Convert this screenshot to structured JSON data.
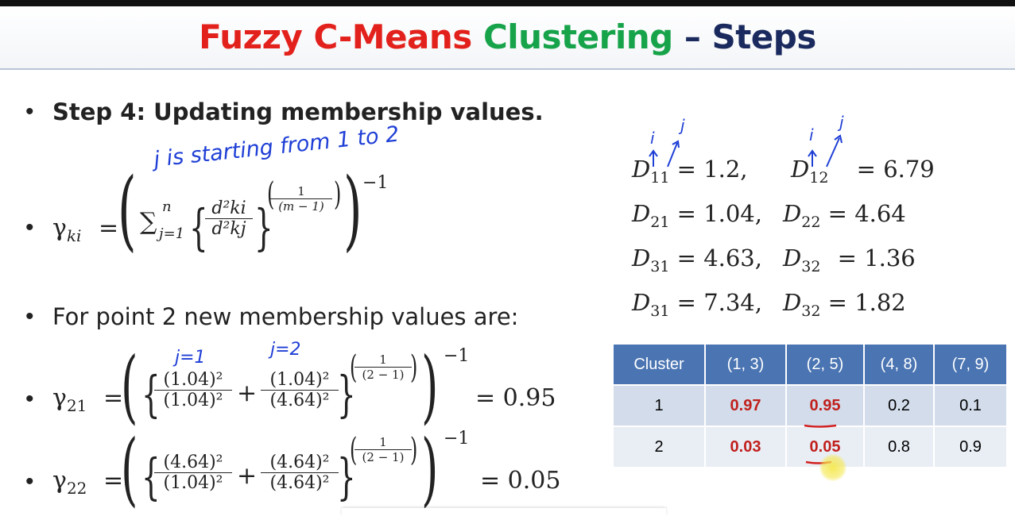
{
  "title": {
    "part1": "Fuzzy C-Means",
    "part2": "Clustering",
    "dash": "–",
    "part3": "Steps"
  },
  "bullets": {
    "step4": "Step 4: Updating membership values.",
    "point2": "For point 2 new membership values are:"
  },
  "formula": {
    "gamma": "γ",
    "ki": "ki",
    "eq": "=",
    "sum": "∑",
    "sum_sup": "n",
    "sum_sub": "j=1",
    "num": "d²ki",
    "den": "d²kj",
    "exp_num": "1",
    "exp_den": "(m − 1)",
    "outer_exp": "−1"
  },
  "g21": {
    "label": "γ",
    "sub": "21",
    "f1_num": "(1.04)²",
    "f1_den": "(1.04)²",
    "plus": "+",
    "f2_num": "(1.04)²",
    "f2_den": "(4.64)²",
    "exp_num": "1",
    "exp_den": "(2 − 1)",
    "outer_exp": "−1",
    "result": "= 0.95"
  },
  "g22": {
    "label": "γ",
    "sub": "22",
    "f1_num": "(4.64)²",
    "f1_den": "(1.04)²",
    "plus": "+",
    "f2_num": "(4.64)²",
    "f2_den": "(4.64)²",
    "exp_num": "1",
    "exp_den": "(2 − 1)",
    "outer_exp": "−1",
    "result": "= 0.05"
  },
  "handwriting": {
    "j_starting": "j is starting from 1 to 2",
    "j1": "j=1",
    "j2": "j=2",
    "i": "i",
    "j": "j"
  },
  "distances": [
    {
      "a": "D",
      "a_sub": "11",
      "a_val": "= 1.2,",
      "b": "D",
      "b_sub": "12",
      "b_val": "= 6.79"
    },
    {
      "a": "D",
      "a_sub": "21",
      "a_val": "= 1.04,",
      "b": "D",
      "b_sub": "22",
      "b_val": "= 4.64"
    },
    {
      "a": "D",
      "a_sub": "31",
      "a_val": "= 4.63,",
      "b": "D",
      "b_sub": "32",
      "b_val": "= 1.36"
    },
    {
      "a": "D",
      "a_sub": "31",
      "a_val": "= 7.34,",
      "b": "D",
      "b_sub": "32",
      "b_val": "= 1.82"
    }
  ],
  "table": {
    "headers": [
      "Cluster",
      "(1, 3)",
      "(2, 5)",
      "(4, 8)",
      "(7, 9)"
    ],
    "rows": [
      [
        "1",
        "0.97",
        "0.95",
        "0.2",
        "0.1"
      ],
      [
        "2",
        "0.03",
        "0.05",
        "0.8",
        "0.9"
      ]
    ],
    "highlight_color": "#c0201c",
    "header_color": "#4a74b2"
  },
  "bullet_char": "•"
}
